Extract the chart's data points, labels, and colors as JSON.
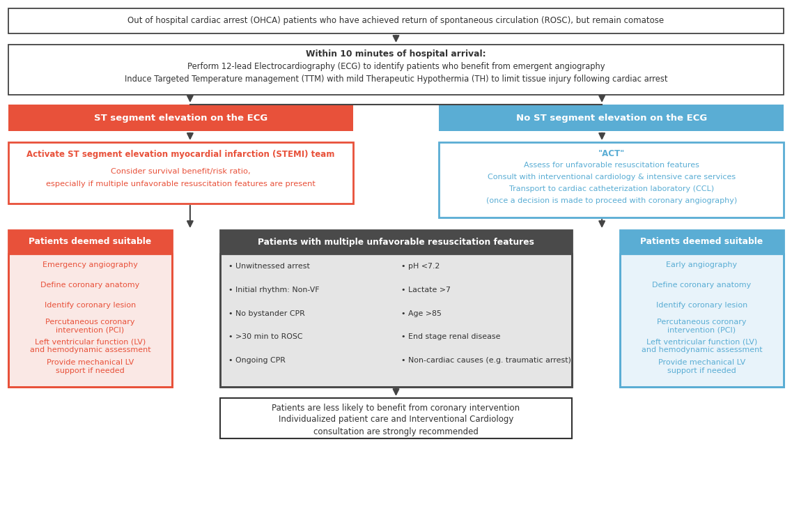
{
  "bg_color": "#ffffff",
  "red_fill": "#e8513a",
  "red_light": "#fae8e5",
  "blue_fill": "#5aadd4",
  "blue_light": "#e8f3fa",
  "dark_fill": "#4a4a4a",
  "dark_light": "#e5e5e5",
  "text_dark": "#333333",
  "text_red": "#e8513a",
  "text_blue": "#5aadd4",
  "text_white": "#ffffff",
  "border_dark": "#333333",
  "arrow_color": "#444444",
  "box1_text": "Out of hospital cardiac arrest (OHCA) patients who have achieved return of spontaneous circulation (ROSC), but remain comatose",
  "box2_line1": "Within 10 minutes of hospital arrival:",
  "box2_line2": "Perform 12-lead Electrocardiography (ECG) to identify patients who benefit from emergent angiography",
  "box2_line3": "Induce Targeted Temperature management (TTM) with mild Therapeutic Hypothermia (TH) to limit tissue injury following cardiac arrest",
  "box3_text": "ST segment elevation on the ECG",
  "box4_text": "No ST segment elevation on the ECG",
  "box5_line1": "Activate ST segment elevation myocardial infarction (STEMI) team",
  "box5_line2": "Consider survival benefit/risk ratio,",
  "box5_line3": "especially if multiple unfavorable resuscitation features are present",
  "box6_line1": "\"ACT\"",
  "box6_line2": "Assess for unfavorable resuscitation features",
  "box6_line3": "Consult with interventional cardiology & intensive care services",
  "box6_line4": "Transport to cardiac catheterization laboratory (CCL)",
  "box6_line5": "(once a decision is made to proceed with coronary angiography)",
  "box7_title": "Patients deemed suitable",
  "box7_items": [
    "Emergency angiography",
    "Define coronary anatomy",
    "Identify coronary lesion",
    "Percutaneous coronary\nintervention (PCI)",
    "Left ventricular function (LV)\nand hemodynamic assessment",
    "Provide mechanical LV\nsupport if needed"
  ],
  "box8_title": "Patients with multiple unfavorable resuscitation features",
  "box8_col1": [
    "• Unwitnessed arrest",
    "• Initial rhythm: Non-VF",
    "• No bystander CPR",
    "• >30 min to ROSC",
    "• Ongoing CPR"
  ],
  "box8_col2": [
    "• pH <7.2",
    "• Lactate >7",
    "• Age >85",
    "• End stage renal disease",
    "• Non-cardiac causes (e.g. traumatic arrest)"
  ],
  "box9_title": "Patients deemed suitable",
  "box9_items": [
    "Early angiography",
    "Define coronary anatomy",
    "Identify coronary lesion",
    "Percutaneous coronary\nintervention (PCI)",
    "Left ventricular function (LV)\nand hemodynamic assessment",
    "Provide mechanical LV\nsupport if needed"
  ],
  "box10_line1": "Patients are less likely to benefit from coronary intervention",
  "box10_line2": "Individualized patient care and Interventional Cardiology",
  "box10_line3": "consultation are strongly recommended"
}
